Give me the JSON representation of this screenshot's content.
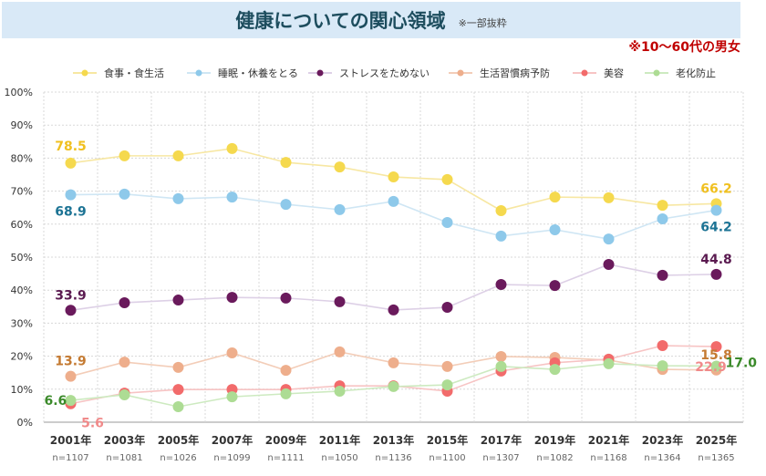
{
  "header": {
    "title": "健康についての関心領域",
    "subtitle": "※一部抜粋",
    "note": "※10～60代の男女"
  },
  "chart_data": {
    "type": "line",
    "categories": [
      "2001年",
      "2003年",
      "2005年",
      "2007年",
      "2009年",
      "2011年",
      "2013年",
      "2015年",
      "2017年",
      "2019年",
      "2021年",
      "2023年",
      "2025年"
    ],
    "sample_sizes": [
      "n=1107",
      "n=1081",
      "n=1026",
      "n=1099",
      "n=1111",
      "n=1050",
      "n=1136",
      "n=1100",
      "n=1307",
      "n=1082",
      "n=1168",
      "n=1364",
      "n=1365"
    ],
    "ylim": [
      0,
      100
    ],
    "yticks": [
      "0%",
      "10%",
      "20%",
      "30%",
      "40%",
      "50%",
      "60%",
      "70%",
      "80%",
      "90%",
      "100%"
    ],
    "grid": true,
    "legend_position": "top",
    "series": [
      {
        "name": "食事・食生活",
        "color": "#f5d94e",
        "line": "#f7e7a2",
        "label_color": "#f0c020",
        "values": [
          78.5,
          80.7,
          80.7,
          82.9,
          78.7,
          77.3,
          74.3,
          73.5,
          64.1,
          68.2,
          68.0,
          65.7,
          66.2
        ],
        "first_label": "78.5",
        "last_label": "66.2"
      },
      {
        "name": "睡眠・休養をとる",
        "color": "#8ec9ea",
        "line": "#cfe6f4",
        "label_color": "#1c7394",
        "values": [
          68.9,
          69.1,
          67.7,
          68.2,
          66.0,
          64.4,
          66.9,
          60.5,
          56.4,
          58.3,
          55.5,
          61.6,
          64.2
        ],
        "first_label": "68.9",
        "last_label": "64.2"
      },
      {
        "name": "ストレスをためない",
        "color": "#6a1a5c",
        "line": "#ddd0e6",
        "label_color": "#5a1a50",
        "values": [
          33.9,
          36.2,
          37.0,
          37.8,
          37.6,
          36.5,
          34.0,
          34.8,
          41.7,
          41.4,
          47.8,
          44.5,
          44.8
        ],
        "first_label": "33.9",
        "last_label": "44.8"
      },
      {
        "name": "生活習慣病予防",
        "color": "#eeae8c",
        "line": "#f3cdb8",
        "label_color": "#c47a32",
        "values": [
          13.9,
          18.2,
          16.6,
          21.0,
          15.7,
          21.3,
          18.0,
          16.9,
          19.9,
          19.6,
          18.8,
          16.0,
          15.8
        ],
        "first_label": "13.9",
        "last_label": "15.8"
      },
      {
        "name": "美容",
        "color": "#f26b6b",
        "line": "#f7c4c4",
        "label_color": "#f08a8a",
        "values": [
          5.6,
          8.8,
          9.9,
          9.9,
          9.9,
          11.0,
          11.0,
          9.4,
          15.5,
          18.0,
          19.1,
          23.2,
          22.9
        ],
        "first_label": "5.6",
        "last_label": "22.9"
      },
      {
        "name": "老化防止",
        "color": "#addc94",
        "line": "#cdeac0",
        "label_color": "#3b8a2a",
        "values": [
          6.6,
          8.3,
          4.7,
          7.7,
          8.6,
          9.4,
          10.8,
          11.3,
          16.9,
          16.0,
          17.7,
          17.1,
          17.0
        ],
        "first_label": "6.6",
        "last_label": "17.0"
      }
    ]
  }
}
